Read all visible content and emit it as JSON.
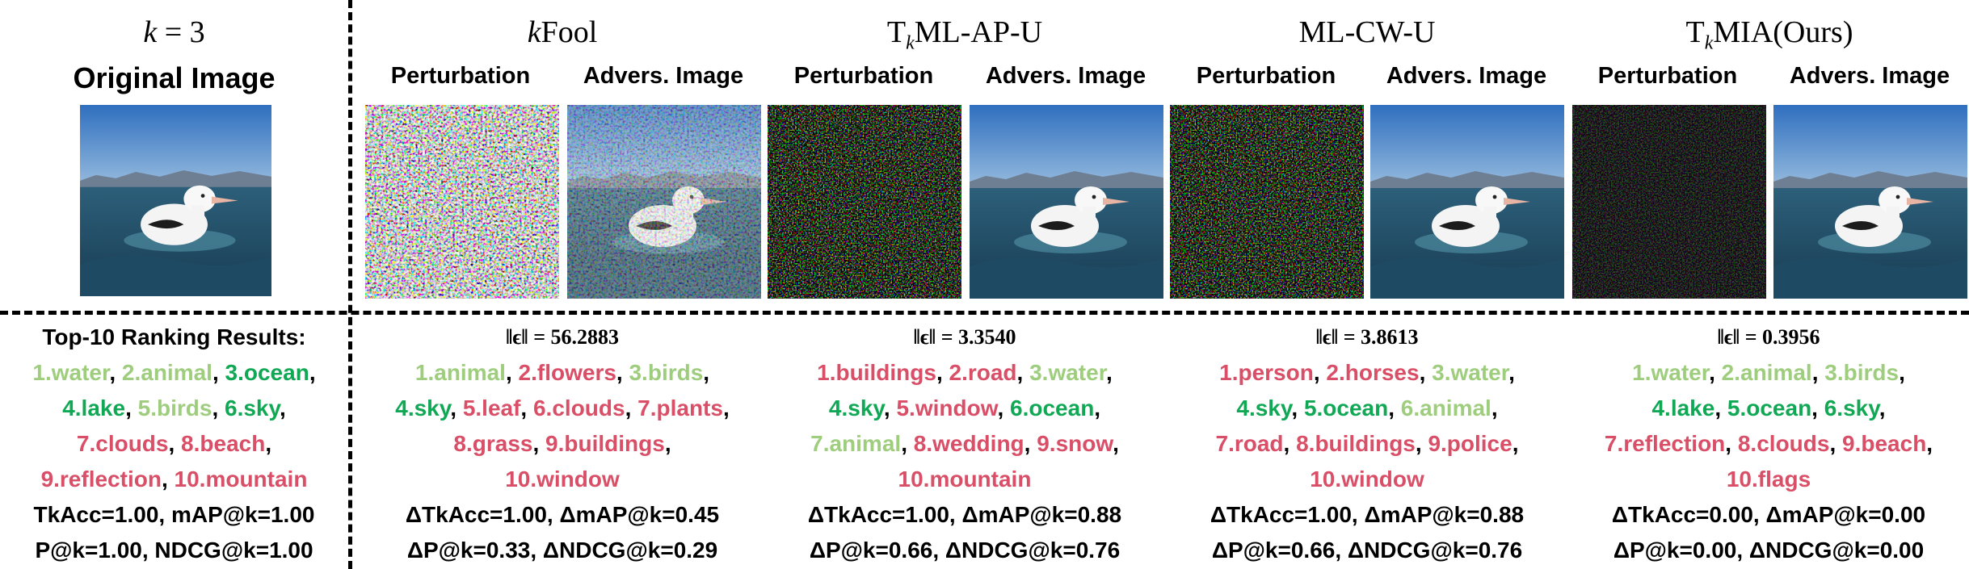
{
  "colors": {
    "light_green": "#9fcd7e",
    "green": "#10a855",
    "red": "#d94f67"
  },
  "header": {
    "k_label": "k = 3",
    "original_title": "Original Image",
    "methods": [
      {
        "title": "kFool",
        "perturbation_label": "Perturbation",
        "adv_label": "Advers. Image"
      },
      {
        "title": "TkML-AP-U",
        "perturbation_label": "Perturbation",
        "adv_label": "Advers. Image"
      },
      {
        "title": "ML-CW-U",
        "perturbation_label": "Perturbation",
        "adv_label": "Advers. Image"
      },
      {
        "title": "TkMIA(Ours)",
        "perturbation_label": "Perturbation",
        "adv_label": "Advers. Image"
      }
    ]
  },
  "original": {
    "title": "Top-10 Ranking Results:",
    "lines": [
      [
        {
          "t": "1.water",
          "c": "light_green"
        },
        {
          "t": ", ",
          "c": "black"
        },
        {
          "t": "2.animal",
          "c": "light_green"
        },
        {
          "t": ", ",
          "c": "black"
        },
        {
          "t": "3.ocean",
          "c": "green"
        },
        {
          "t": ",",
          "c": "black"
        }
      ],
      [
        {
          "t": "4.lake",
          "c": "green"
        },
        {
          "t": ", ",
          "c": "black"
        },
        {
          "t": "5.birds",
          "c": "light_green"
        },
        {
          "t": ", ",
          "c": "black"
        },
        {
          "t": "6.sky",
          "c": "green"
        },
        {
          "t": ",",
          "c": "black"
        }
      ],
      [
        {
          "t": "7.clouds",
          "c": "red"
        },
        {
          "t": ", ",
          "c": "black"
        },
        {
          "t": "8.beach",
          "c": "red"
        },
        {
          "t": ",",
          "c": "black"
        }
      ],
      [
        {
          "t": "9.reflection",
          "c": "red"
        },
        {
          "t": ", ",
          "c": "black"
        },
        {
          "t": "10.mountain",
          "c": "red"
        }
      ]
    ],
    "metrics": [
      "TkAcc=1.00, mAP@k=1.00",
      "P@k=1.00, NDCG@k=1.00"
    ]
  },
  "results": [
    {
      "norm": "‖ϵ‖ = 56.2883",
      "lines": [
        [
          {
            "t": "1.animal",
            "c": "light_green"
          },
          {
            "t": ", ",
            "c": "black"
          },
          {
            "t": "2.flowers",
            "c": "red"
          },
          {
            "t": ", ",
            "c": "black"
          },
          {
            "t": "3.birds",
            "c": "light_green"
          },
          {
            "t": ",",
            "c": "black"
          }
        ],
        [
          {
            "t": "4.sky",
            "c": "green"
          },
          {
            "t": ", ",
            "c": "black"
          },
          {
            "t": "5.leaf",
            "c": "red"
          },
          {
            "t": ", ",
            "c": "black"
          },
          {
            "t": "6.clouds",
            "c": "red"
          },
          {
            "t": ", ",
            "c": "black"
          },
          {
            "t": "7.plants",
            "c": "red"
          },
          {
            "t": ",",
            "c": "black"
          }
        ],
        [
          {
            "t": "8.grass",
            "c": "red"
          },
          {
            "t": ", ",
            "c": "black"
          },
          {
            "t": "9.buildings",
            "c": "red"
          },
          {
            "t": ",",
            "c": "black"
          }
        ],
        [
          {
            "t": "10.window",
            "c": "red"
          }
        ]
      ],
      "metrics": [
        "ΔTkAcc=1.00, ΔmAP@k=0.45",
        "ΔP@k=0.33, ΔNDCG@k=0.29"
      ]
    },
    {
      "norm": "‖ϵ‖ = 3.3540",
      "lines": [
        [
          {
            "t": "1.buildings",
            "c": "red"
          },
          {
            "t": ", ",
            "c": "black"
          },
          {
            "t": "2.road",
            "c": "red"
          },
          {
            "t": ", ",
            "c": "black"
          },
          {
            "t": "3.water",
            "c": "light_green"
          },
          {
            "t": ",",
            "c": "black"
          }
        ],
        [
          {
            "t": "4.sky",
            "c": "green"
          },
          {
            "t": ", ",
            "c": "black"
          },
          {
            "t": "5.window",
            "c": "red"
          },
          {
            "t": ", ",
            "c": "black"
          },
          {
            "t": "6.ocean",
            "c": "green"
          },
          {
            "t": ",",
            "c": "black"
          }
        ],
        [
          {
            "t": "7.animal",
            "c": "light_green"
          },
          {
            "t": ", ",
            "c": "black"
          },
          {
            "t": "8.wedding",
            "c": "red"
          },
          {
            "t": ", ",
            "c": "black"
          },
          {
            "t": "9.snow",
            "c": "red"
          },
          {
            "t": ",",
            "c": "black"
          }
        ],
        [
          {
            "t": "10.mountain",
            "c": "red"
          }
        ]
      ],
      "metrics": [
        "ΔTkAcc=1.00, ΔmAP@k=0.88",
        "ΔP@k=0.66, ΔNDCG@k=0.76"
      ]
    },
    {
      "norm": "‖ϵ‖ = 3.8613",
      "lines": [
        [
          {
            "t": "1.person",
            "c": "red"
          },
          {
            "t": ", ",
            "c": "black"
          },
          {
            "t": "2.horses",
            "c": "red"
          },
          {
            "t": ", ",
            "c": "black"
          },
          {
            "t": "3.water",
            "c": "light_green"
          },
          {
            "t": ",",
            "c": "black"
          }
        ],
        [
          {
            "t": "4.sky",
            "c": "green"
          },
          {
            "t": ", ",
            "c": "black"
          },
          {
            "t": "5.ocean",
            "c": "green"
          },
          {
            "t": ", ",
            "c": "black"
          },
          {
            "t": "6.animal",
            "c": "light_green"
          },
          {
            "t": ",",
            "c": "black"
          }
        ],
        [
          {
            "t": "7.road",
            "c": "red"
          },
          {
            "t": ", ",
            "c": "black"
          },
          {
            "t": "8.buildings",
            "c": "red"
          },
          {
            "t": ", ",
            "c": "black"
          },
          {
            "t": "9.police",
            "c": "red"
          },
          {
            "t": ",",
            "c": "black"
          }
        ],
        [
          {
            "t": "10.window",
            "c": "red"
          }
        ]
      ],
      "metrics": [
        "ΔTkAcc=1.00, ΔmAP@k=0.88",
        "ΔP@k=0.66, ΔNDCG@k=0.76"
      ]
    },
    {
      "norm": "‖ϵ‖ = 0.3956",
      "lines": [
        [
          {
            "t": "1.water",
            "c": "light_green"
          },
          {
            "t": ", ",
            "c": "black"
          },
          {
            "t": "2.animal",
            "c": "light_green"
          },
          {
            "t": ", ",
            "c": "black"
          },
          {
            "t": "3.birds",
            "c": "light_green"
          },
          {
            "t": ",",
            "c": "black"
          }
        ],
        [
          {
            "t": "4.lake",
            "c": "green"
          },
          {
            "t": ", ",
            "c": "black"
          },
          {
            "t": "5.ocean",
            "c": "green"
          },
          {
            "t": ", ",
            "c": "black"
          },
          {
            "t": "6.sky",
            "c": "green"
          },
          {
            "t": ",",
            "c": "black"
          }
        ],
        [
          {
            "t": "7.reflection",
            "c": "red"
          },
          {
            "t": ", ",
            "c": "black"
          },
          {
            "t": "8.clouds",
            "c": "red"
          },
          {
            "t": ", ",
            "c": "black"
          },
          {
            "t": "9.beach",
            "c": "red"
          },
          {
            "t": ",",
            "c": "black"
          }
        ],
        [
          {
            "t": "10.flags",
            "c": "red"
          }
        ]
      ],
      "metrics": [
        "ΔTkAcc=0.00, ΔmAP@k=0.00",
        "ΔP@k=0.00, ΔNDCG@k=0.00"
      ]
    }
  ]
}
